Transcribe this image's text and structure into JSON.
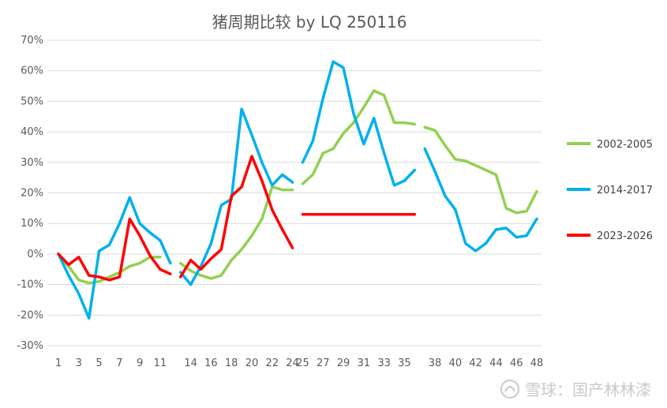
{
  "chart_data": {
    "type": "line",
    "title": "猪周期比较 by LQ 250116",
    "xlabel": "",
    "ylabel": "",
    "x_range": [
      1,
      48
    ],
    "x_tick_labels": [
      "1",
      "3",
      "5",
      "7",
      "9",
      "11",
      "14",
      "16",
      "18",
      "20",
      "22",
      "24",
      "25",
      "27",
      "29",
      "31",
      "33",
      "35",
      "38",
      "40",
      "42",
      "44",
      "46",
      "48"
    ],
    "y_ticks": [
      -30,
      -20,
      -10,
      0,
      10,
      20,
      30,
      40,
      50,
      60,
      70
    ],
    "y_tick_labels": [
      "-30%",
      "-20%",
      "-10%",
      "0%",
      "10%",
      "20%",
      "30%",
      "40%",
      "50%",
      "60%",
      "70%"
    ],
    "ylim": [
      -30,
      70
    ],
    "grid": "horizontal",
    "legend_position": "right",
    "series": [
      {
        "name": "2002-2005",
        "color": "#92d050",
        "segments": [
          [
            [
              1,
              0
            ],
            [
              2,
              -4
            ],
            [
              3,
              -8.5
            ],
            [
              4,
              -9.5
            ],
            [
              5,
              -9
            ],
            [
              6,
              -7.5
            ],
            [
              7,
              -6
            ],
            [
              8,
              -4
            ],
            [
              9,
              -3
            ],
            [
              10,
              -1
            ],
            [
              11,
              -1
            ]
          ],
          [
            [
              13,
              -3
            ],
            [
              14,
              -5.5
            ],
            [
              15,
              -7
            ],
            [
              16,
              -8
            ],
            [
              17,
              -7
            ],
            [
              18,
              -2
            ],
            [
              19,
              1.5
            ],
            [
              20,
              6
            ],
            [
              21,
              11.5
            ],
            [
              22,
              22
            ],
            [
              23,
              21
            ],
            [
              24,
              21
            ]
          ],
          [
            [
              25,
              23
            ],
            [
              26,
              26
            ],
            [
              27,
              33
            ],
            [
              28,
              34.5
            ],
            [
              29,
              39.5
            ],
            [
              30,
              43
            ],
            [
              31,
              48
            ],
            [
              32,
              53.5
            ],
            [
              33,
              52
            ],
            [
              34,
              43
            ],
            [
              35,
              43
            ],
            [
              36,
              42.5
            ]
          ],
          [
            [
              37,
              41.5
            ],
            [
              38,
              40.5
            ],
            [
              39,
              35.5
            ],
            [
              40,
              31
            ],
            [
              41,
              30.5
            ],
            [
              42,
              29
            ],
            [
              43,
              27.5
            ],
            [
              44,
              26
            ],
            [
              45,
              15
            ],
            [
              46,
              13.5
            ],
            [
              47,
              14
            ],
            [
              48,
              20.5
            ]
          ]
        ]
      },
      {
        "name": "2014-2017",
        "color": "#00b0f0",
        "segments": [
          [
            [
              1,
              0
            ],
            [
              2,
              -7
            ],
            [
              3,
              -13
            ],
            [
              4,
              -21
            ],
            [
              5,
              1
            ],
            [
              6,
              3
            ],
            [
              7,
              10
            ],
            [
              8,
              18.5
            ],
            [
              9,
              10
            ],
            [
              10,
              7
            ],
            [
              11,
              4.5
            ],
            [
              12,
              -3
            ]
          ],
          [
            [
              13,
              -6
            ],
            [
              14,
              -10
            ],
            [
              15,
              -4
            ],
            [
              16,
              3.5
            ],
            [
              17,
              16
            ],
            [
              18,
              18
            ],
            [
              19,
              47.5
            ],
            [
              20,
              39
            ],
            [
              21,
              30
            ],
            [
              22,
              22.5
            ],
            [
              23,
              26
            ],
            [
              24,
              23.5
            ]
          ],
          [
            [
              25,
              30
            ],
            [
              26,
              37
            ],
            [
              27,
              51
            ],
            [
              28,
              63
            ],
            [
              29,
              61
            ],
            [
              30,
              46
            ],
            [
              31,
              36
            ],
            [
              32,
              44.5
            ],
            [
              33,
              33
            ],
            [
              34,
              22.5
            ],
            [
              35,
              24
            ],
            [
              36,
              27.5
            ]
          ],
          [
            [
              37,
              34.5
            ],
            [
              38,
              27
            ],
            [
              39,
              19
            ],
            [
              40,
              14.5
            ],
            [
              41,
              3.5
            ],
            [
              42,
              1
            ],
            [
              43,
              3.5
            ],
            [
              44,
              8
            ],
            [
              45,
              8.5
            ],
            [
              46,
              5.5
            ],
            [
              47,
              6
            ],
            [
              48,
              11.5
            ]
          ]
        ]
      },
      {
        "name": "2023-2026",
        "color": "#ff0000",
        "segments": [
          [
            [
              1,
              0
            ],
            [
              2,
              -3.5
            ],
            [
              3,
              -1
            ],
            [
              4,
              -7
            ],
            [
              5,
              -7.5
            ],
            [
              6,
              -8.5
            ],
            [
              7,
              -7.5
            ],
            [
              8,
              11.5
            ],
            [
              9,
              6
            ],
            [
              10,
              -0.5
            ],
            [
              11,
              -5
            ],
            [
              12,
              -6.5
            ]
          ],
          [
            [
              13,
              -7.5
            ],
            [
              14,
              -2
            ],
            [
              15,
              -5
            ],
            [
              16,
              -1.5
            ],
            [
              17,
              1.5
            ],
            [
              18,
              19
            ],
            [
              19,
              22
            ],
            [
              20,
              32
            ],
            [
              21,
              24
            ],
            [
              22,
              14.5
            ],
            [
              23,
              8
            ],
            [
              24,
              2
            ]
          ],
          [
            [
              25,
              13
            ],
            [
              26,
              13
            ],
            [
              27,
              13
            ],
            [
              28,
              13
            ],
            [
              29,
              13
            ],
            [
              30,
              13
            ],
            [
              31,
              13
            ],
            [
              32,
              13
            ],
            [
              33,
              13
            ],
            [
              34,
              13
            ],
            [
              35,
              13
            ],
            [
              36,
              13
            ]
          ]
        ]
      }
    ]
  },
  "watermark": {
    "text": "雪球：国产林林漆",
    "icon": "snowball-logo"
  }
}
